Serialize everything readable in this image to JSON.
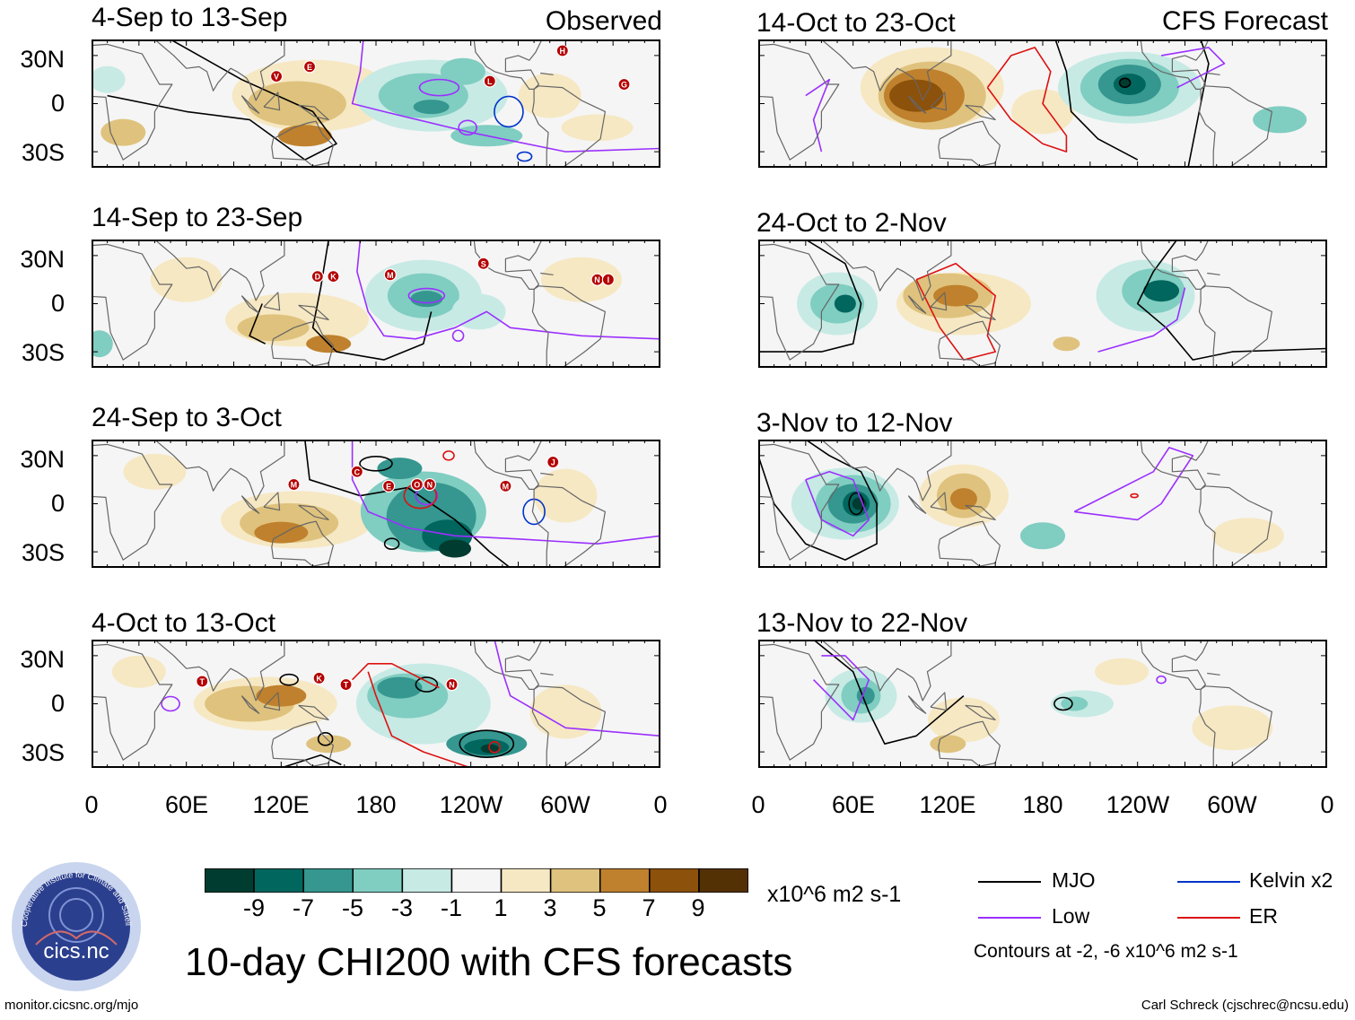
{
  "colors": {
    "scale": [
      "#003c30",
      "#01665e",
      "#35978f",
      "#80cdc1",
      "#c7eae5",
      "#f5f5f5",
      "#f6e8c3",
      "#dfc27d",
      "#bf812d",
      "#8c510a",
      "#543005"
    ],
    "land": "#666666",
    "mjo": "#000000",
    "low": "#9b30ff",
    "kelvin": "#0033cc",
    "er": "#dd1111",
    "storm": "#b40000"
  },
  "left_header": "Observed",
  "right_header": "CFS Forecast",
  "panels": [
    {
      "id": "obs1",
      "title": "4-Sep to 13-Sep",
      "storms": [
        {
          "label": "V",
          "lon": 117,
          "lat": 17
        },
        {
          "label": "E",
          "lon": 138,
          "lat": 23
        },
        {
          "label": "L",
          "lon": 252,
          "lat": 14
        },
        {
          "label": "H",
          "lon": 298,
          "lat": 33
        },
        {
          "label": "G",
          "lon": 337,
          "lat": 12
        }
      ]
    },
    {
      "id": "obs2",
      "title": "14-Sep to 23-Sep",
      "storms": [
        {
          "label": "D",
          "lon": 143,
          "lat": 17
        },
        {
          "label": "K",
          "lon": 153,
          "lat": 17
        },
        {
          "label": "M",
          "lon": 189,
          "lat": 18
        },
        {
          "label": "S",
          "lon": 248,
          "lat": 25
        },
        {
          "label": "N",
          "lon": 320,
          "lat": 15
        },
        {
          "label": "I",
          "lon": 327,
          "lat": 15
        }
      ]
    },
    {
      "id": "obs3",
      "title": "24-Sep to 3-Oct",
      "storms": [
        {
          "label": "M",
          "lon": 128,
          "lat": 12
        },
        {
          "label": "C",
          "lon": 168,
          "lat": 20
        },
        {
          "label": "E",
          "lon": 188,
          "lat": 11
        },
        {
          "label": "O",
          "lon": 206,
          "lat": 12
        },
        {
          "label": "N",
          "lon": 214,
          "lat": 12
        },
        {
          "label": "M",
          "lon": 262,
          "lat": 11
        },
        {
          "label": "J",
          "lon": 292,
          "lat": 26
        }
      ]
    },
    {
      "id": "obs4",
      "title": "4-Oct to 13-Oct",
      "storms": [
        {
          "label": "T",
          "lon": 70,
          "lat": 14
        },
        {
          "label": "K",
          "lon": 144,
          "lat": 16
        },
        {
          "label": "T",
          "lon": 161,
          "lat": 12
        },
        {
          "label": "N",
          "lon": 228,
          "lat": 12
        }
      ]
    },
    {
      "id": "fc1",
      "title": "14-Oct to 23-Oct",
      "storms": []
    },
    {
      "id": "fc2",
      "title": "24-Oct to 2-Nov",
      "storms": []
    },
    {
      "id": "fc3",
      "title": "3-Nov to 12-Nov",
      "storms": []
    },
    {
      "id": "fc4",
      "title": "13-Nov to 22-Nov",
      "storms": []
    }
  ],
  "lat_labels": [
    "30N",
    "0",
    "30S"
  ],
  "lon_labels": [
    "0",
    "60E",
    "120E",
    "180",
    "120W",
    "60W",
    "0"
  ],
  "colorbar": {
    "labels": [
      "-9",
      "-7",
      "-5",
      "-3",
      "-1",
      "1",
      "3",
      "5",
      "7",
      "9"
    ],
    "units": "x10^6 m2 s-1"
  },
  "legend": {
    "mjo": "MJO",
    "low": "Low",
    "kelvin": "Kelvin x2",
    "er": "ER",
    "note": "Contours at -2, -6 x10^6 m2 s-1"
  },
  "main_title": "10-day CHI200 with CFS forecasts",
  "logo": {
    "arc_text": "Cooperative Institute for Climate and Satellites",
    "name": "cics.nc"
  },
  "footer_left": "monitor.cicsnc.org/mjo",
  "footer_right": "Carl Schreck (cjschrec@ncsu.edu)"
}
